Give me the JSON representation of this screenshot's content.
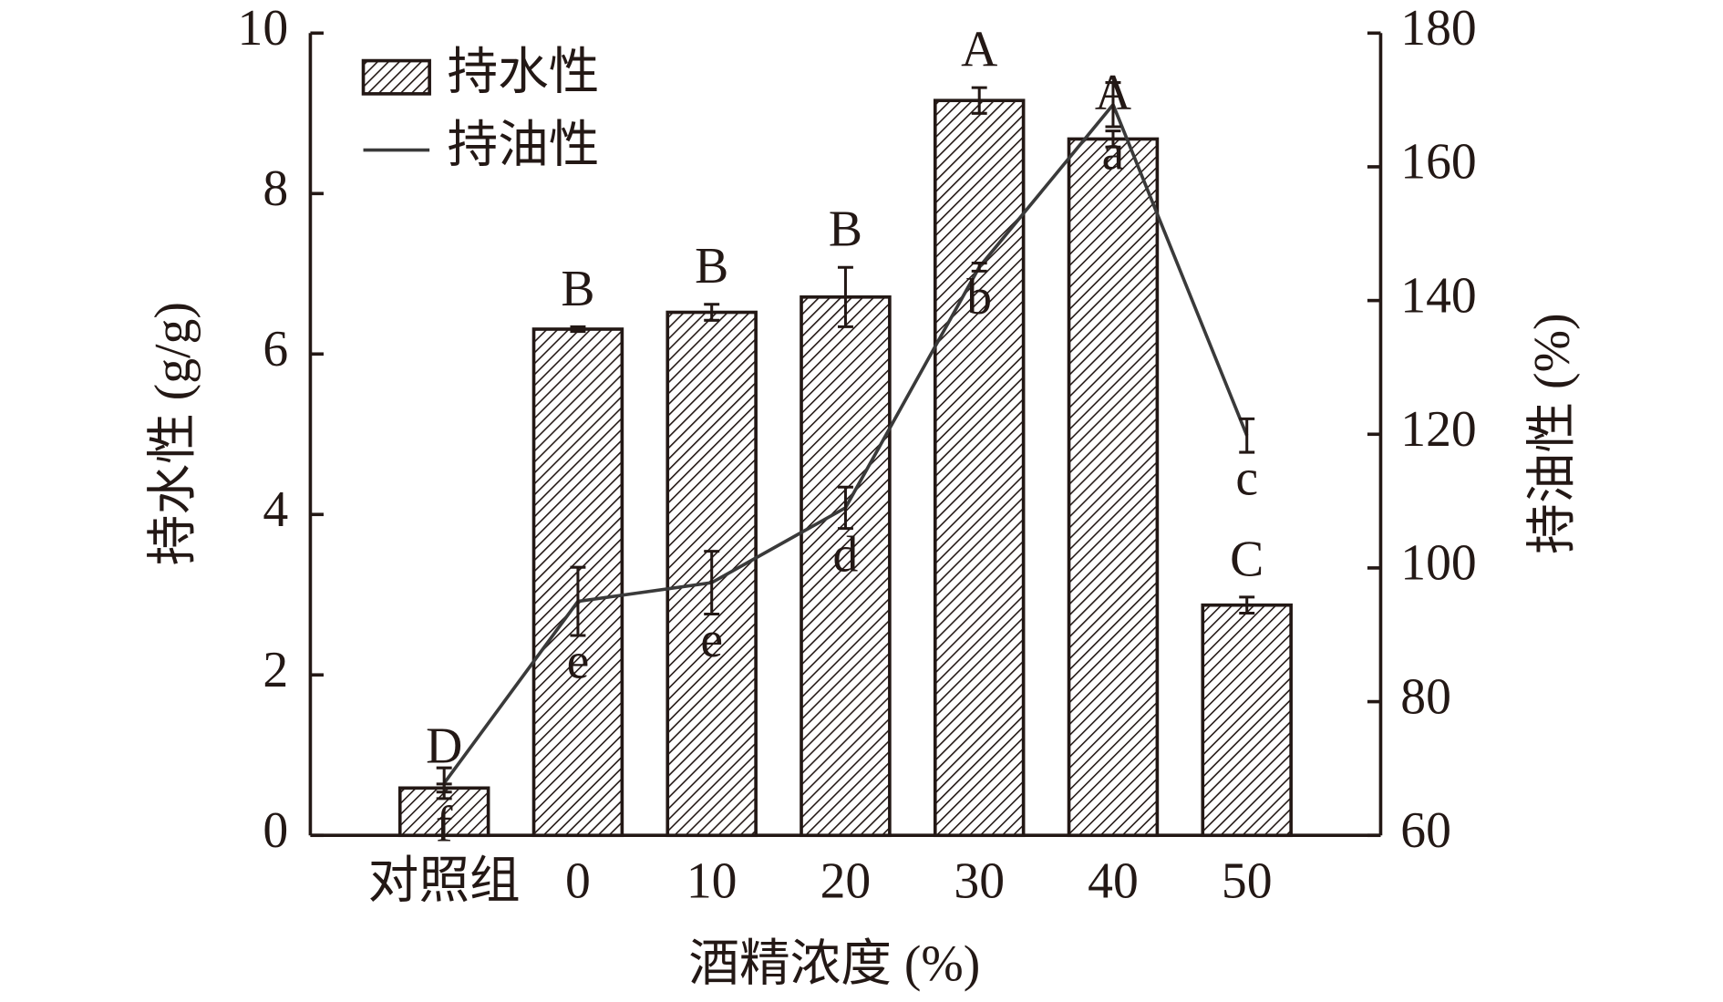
{
  "chart_data": {
    "type": "bar",
    "x_label": "酒精浓度 (%)",
    "y_label": "持水性 (g/g)",
    "y2_label": "持油性 (%)",
    "categories": [
      "对照组",
      "0",
      "10",
      "20",
      "30",
      "40",
      "50"
    ],
    "ylim": [
      0,
      10
    ],
    "yticks": [
      0,
      2,
      4,
      6,
      8,
      10
    ],
    "y2lim": [
      60,
      180
    ],
    "y2ticks": [
      60,
      80,
      100,
      120,
      140,
      160,
      180
    ],
    "legend": "upper left",
    "series": [
      {
        "name": "持水性",
        "type": "bar",
        "color": "#231815",
        "values": [
          0.59,
          6.31,
          6.52,
          6.71,
          9.16,
          8.68,
          2.87
        ],
        "errors": [
          0.05,
          0.03,
          0.1,
          0.37,
          0.16,
          0.1,
          0.1
        ],
        "significance": [
          "D",
          "B",
          "B",
          "B",
          "A",
          "A",
          "C"
        ]
      },
      {
        "name": "持油性",
        "type": "line",
        "axis": "y2",
        "color": "#3a3a3a",
        "values": [
          67.8,
          95,
          97.8,
          109,
          145,
          169.3,
          119.8
        ],
        "errors": [
          2.3,
          5.1,
          4.7,
          3.1,
          0.6,
          3.3,
          2.5
        ],
        "significance": [
          "f",
          "e",
          "e",
          "d",
          "b",
          "a",
          "c"
        ]
      }
    ]
  }
}
